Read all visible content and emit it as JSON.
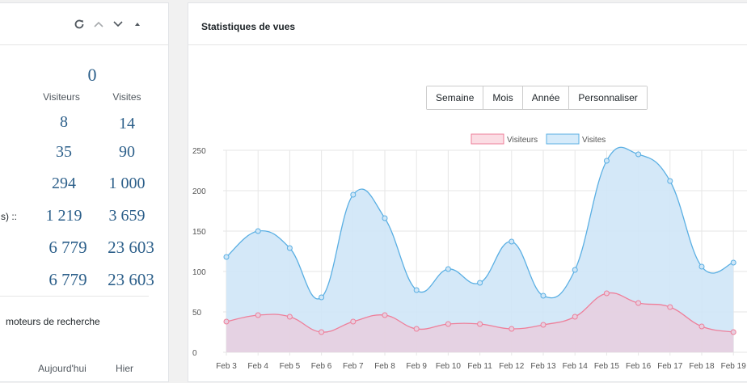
{
  "left": {
    "total_top": "0",
    "col_visitors": "Visiteurs",
    "col_visits": "Visites",
    "rows": [
      {
        "label": "",
        "visitors": "8",
        "visits": "14"
      },
      {
        "label": "",
        "visitors": "35",
        "visits": "90"
      },
      {
        "label": "",
        "visitors": "294",
        "visits": "1 000"
      },
      {
        "label": "s) ::",
        "visitors": "1 219",
        "visits": "3 659"
      },
      {
        "label": "",
        "visitors": "6 779",
        "visits": "23 603"
      },
      {
        "label": "",
        "visitors": "6 779",
        "visits": "23 603"
      }
    ],
    "search_title": "moteurs de recherche",
    "col_today": "Aujourd'hui",
    "col_yesterday": "Hier"
  },
  "right": {
    "title": "Statistiques de vues",
    "buttons": [
      "Semaine",
      "Mois",
      "Année",
      "Personnaliser"
    ]
  },
  "colors": {
    "visitors_line": "#ee7f9a",
    "visitors_fill": "#e7cfe0",
    "visits_line": "#5aafe3",
    "visits_fill": "#cfe6f7"
  },
  "chart_data": {
    "type": "area",
    "legend": [
      "Visiteurs",
      "Visites"
    ],
    "legend_position": "top",
    "categories": [
      "Feb 3",
      "Feb 4",
      "Feb 5",
      "Feb 6",
      "Feb 7",
      "Feb 8",
      "Feb 9",
      "Feb 10",
      "Feb 11",
      "Feb 12",
      "Feb 13",
      "Feb 14",
      "Feb 15",
      "Feb 16",
      "Feb 17",
      "Feb 18",
      "Feb 19"
    ],
    "series": [
      {
        "name": "Visiteurs",
        "values": [
          38,
          46,
          44,
          25,
          38,
          46,
          29,
          35,
          35,
          29,
          34,
          44,
          73,
          61,
          56,
          32,
          25
        ]
      },
      {
        "name": "Visites",
        "values": [
          118,
          150,
          129,
          68,
          195,
          166,
          77,
          103,
          86,
          137,
          70,
          102,
          237,
          245,
          212,
          106,
          111
        ]
      }
    ],
    "y_ticks": [
      "0",
      "50",
      "100",
      "150",
      "200",
      "250"
    ],
    "ylim": [
      0,
      250
    ],
    "grid": true
  }
}
